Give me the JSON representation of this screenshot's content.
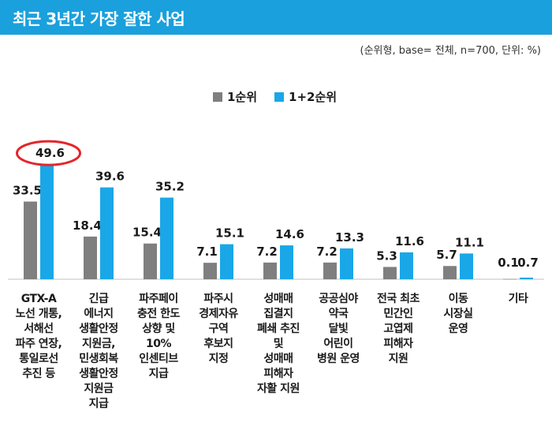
{
  "header": {
    "title": "최근 3년간 가장 잘한 사업",
    "note": "(순위형, base= 전체, n=700, 단위: %)"
  },
  "colors": {
    "title_bar": "#1aa0dc",
    "rank1": "#7f7f7f",
    "rank12": "#1aa7e8",
    "highlight_ring": "#e3262b"
  },
  "chart_data": {
    "type": "bar",
    "title": "최근 3년간 가장 잘한 사업",
    "categories": [
      "GTX-A\n노선 개통,\n서해선\n파주 연장,\n통일로선\n추진 등",
      "긴급\n에너지\n생활안정\n지원금,\n민생회복\n생활안정\n지원금\n지급",
      "파주페이\n충전 한도\n상향 및\n10%\n인센티브\n지급",
      "파주시\n경제자유\n구역\n후보지\n지정",
      "성매매\n집결지\n폐쇄 추진\n및\n성매매\n피해자\n자활 지원",
      "공공심야\n약국\n달빛\n어린이\n병원 운영",
      "전국 최초\n민간인\n고엽제\n피해자\n지원",
      "이동\n시장실\n운영",
      "기타"
    ],
    "series": [
      {
        "name": "1순위",
        "values": [
          33.5,
          18.4,
          15.4,
          7.1,
          7.2,
          7.2,
          5.3,
          5.7,
          0.1
        ]
      },
      {
        "name": "1+2순위",
        "values": [
          49.6,
          39.6,
          35.2,
          15.1,
          14.6,
          13.3,
          11.6,
          11.1,
          0.7
        ]
      }
    ],
    "ylim": [
      0,
      50
    ],
    "legend_position": "top",
    "highlighted_value": 49.6
  }
}
